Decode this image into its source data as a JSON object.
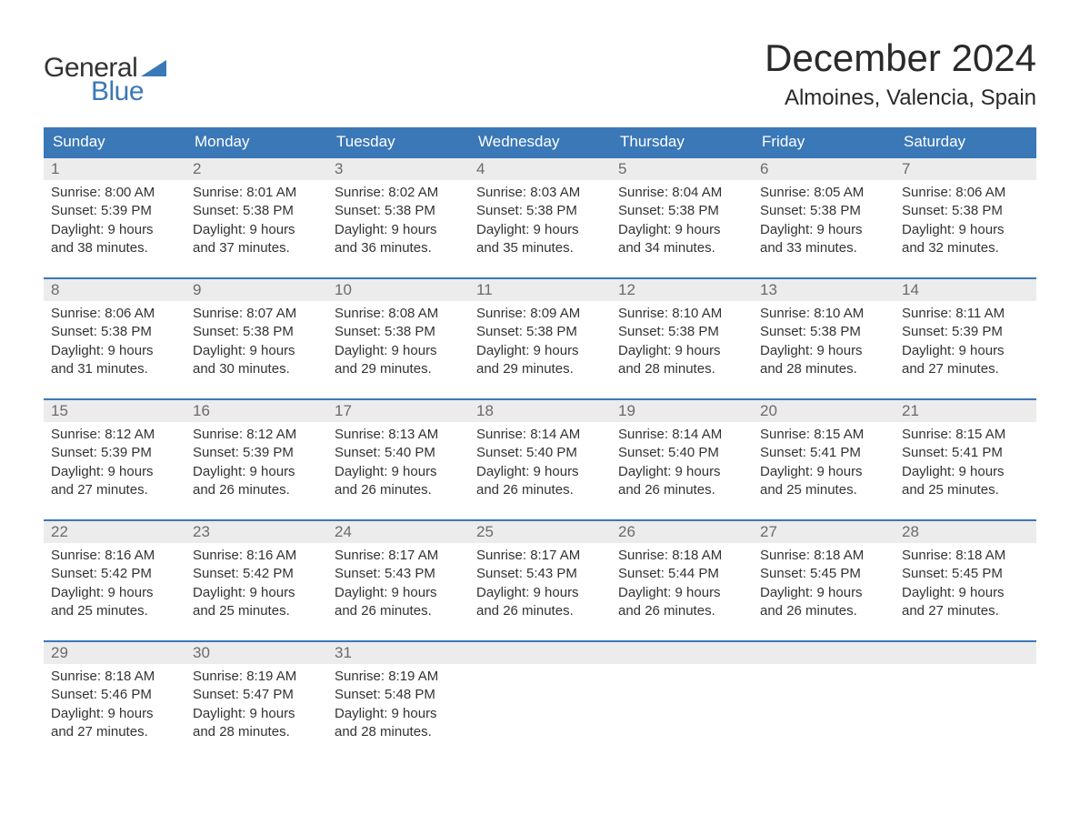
{
  "logo": {
    "text_general": "General",
    "text_blue": "Blue",
    "triangle_color": "#3a78b8"
  },
  "title": "December 2024",
  "location": "Almoines, Valencia, Spain",
  "colors": {
    "header_bg": "#3a78b8",
    "header_text": "#ffffff",
    "daynum_bg": "#ececec",
    "daynum_border": "#3a78b8",
    "daynum_text": "#6b6b6b",
    "body_text": "#333333",
    "page_bg": "#ffffff"
  },
  "day_headers": [
    "Sunday",
    "Monday",
    "Tuesday",
    "Wednesday",
    "Thursday",
    "Friday",
    "Saturday"
  ],
  "weeks": [
    [
      {
        "n": "1",
        "sunrise": "Sunrise: 8:00 AM",
        "sunset": "Sunset: 5:39 PM",
        "dl1": "Daylight: 9 hours",
        "dl2": "and 38 minutes."
      },
      {
        "n": "2",
        "sunrise": "Sunrise: 8:01 AM",
        "sunset": "Sunset: 5:38 PM",
        "dl1": "Daylight: 9 hours",
        "dl2": "and 37 minutes."
      },
      {
        "n": "3",
        "sunrise": "Sunrise: 8:02 AM",
        "sunset": "Sunset: 5:38 PM",
        "dl1": "Daylight: 9 hours",
        "dl2": "and 36 minutes."
      },
      {
        "n": "4",
        "sunrise": "Sunrise: 8:03 AM",
        "sunset": "Sunset: 5:38 PM",
        "dl1": "Daylight: 9 hours",
        "dl2": "and 35 minutes."
      },
      {
        "n": "5",
        "sunrise": "Sunrise: 8:04 AM",
        "sunset": "Sunset: 5:38 PM",
        "dl1": "Daylight: 9 hours",
        "dl2": "and 34 minutes."
      },
      {
        "n": "6",
        "sunrise": "Sunrise: 8:05 AM",
        "sunset": "Sunset: 5:38 PM",
        "dl1": "Daylight: 9 hours",
        "dl2": "and 33 minutes."
      },
      {
        "n": "7",
        "sunrise": "Sunrise: 8:06 AM",
        "sunset": "Sunset: 5:38 PM",
        "dl1": "Daylight: 9 hours",
        "dl2": "and 32 minutes."
      }
    ],
    [
      {
        "n": "8",
        "sunrise": "Sunrise: 8:06 AM",
        "sunset": "Sunset: 5:38 PM",
        "dl1": "Daylight: 9 hours",
        "dl2": "and 31 minutes."
      },
      {
        "n": "9",
        "sunrise": "Sunrise: 8:07 AM",
        "sunset": "Sunset: 5:38 PM",
        "dl1": "Daylight: 9 hours",
        "dl2": "and 30 minutes."
      },
      {
        "n": "10",
        "sunrise": "Sunrise: 8:08 AM",
        "sunset": "Sunset: 5:38 PM",
        "dl1": "Daylight: 9 hours",
        "dl2": "and 29 minutes."
      },
      {
        "n": "11",
        "sunrise": "Sunrise: 8:09 AM",
        "sunset": "Sunset: 5:38 PM",
        "dl1": "Daylight: 9 hours",
        "dl2": "and 29 minutes."
      },
      {
        "n": "12",
        "sunrise": "Sunrise: 8:10 AM",
        "sunset": "Sunset: 5:38 PM",
        "dl1": "Daylight: 9 hours",
        "dl2": "and 28 minutes."
      },
      {
        "n": "13",
        "sunrise": "Sunrise: 8:10 AM",
        "sunset": "Sunset: 5:38 PM",
        "dl1": "Daylight: 9 hours",
        "dl2": "and 28 minutes."
      },
      {
        "n": "14",
        "sunrise": "Sunrise: 8:11 AM",
        "sunset": "Sunset: 5:39 PM",
        "dl1": "Daylight: 9 hours",
        "dl2": "and 27 minutes."
      }
    ],
    [
      {
        "n": "15",
        "sunrise": "Sunrise: 8:12 AM",
        "sunset": "Sunset: 5:39 PM",
        "dl1": "Daylight: 9 hours",
        "dl2": "and 27 minutes."
      },
      {
        "n": "16",
        "sunrise": "Sunrise: 8:12 AM",
        "sunset": "Sunset: 5:39 PM",
        "dl1": "Daylight: 9 hours",
        "dl2": "and 26 minutes."
      },
      {
        "n": "17",
        "sunrise": "Sunrise: 8:13 AM",
        "sunset": "Sunset: 5:40 PM",
        "dl1": "Daylight: 9 hours",
        "dl2": "and 26 minutes."
      },
      {
        "n": "18",
        "sunrise": "Sunrise: 8:14 AM",
        "sunset": "Sunset: 5:40 PM",
        "dl1": "Daylight: 9 hours",
        "dl2": "and 26 minutes."
      },
      {
        "n": "19",
        "sunrise": "Sunrise: 8:14 AM",
        "sunset": "Sunset: 5:40 PM",
        "dl1": "Daylight: 9 hours",
        "dl2": "and 26 minutes."
      },
      {
        "n": "20",
        "sunrise": "Sunrise: 8:15 AM",
        "sunset": "Sunset: 5:41 PM",
        "dl1": "Daylight: 9 hours",
        "dl2": "and 25 minutes."
      },
      {
        "n": "21",
        "sunrise": "Sunrise: 8:15 AM",
        "sunset": "Sunset: 5:41 PM",
        "dl1": "Daylight: 9 hours",
        "dl2": "and 25 minutes."
      }
    ],
    [
      {
        "n": "22",
        "sunrise": "Sunrise: 8:16 AM",
        "sunset": "Sunset: 5:42 PM",
        "dl1": "Daylight: 9 hours",
        "dl2": "and 25 minutes."
      },
      {
        "n": "23",
        "sunrise": "Sunrise: 8:16 AM",
        "sunset": "Sunset: 5:42 PM",
        "dl1": "Daylight: 9 hours",
        "dl2": "and 25 minutes."
      },
      {
        "n": "24",
        "sunrise": "Sunrise: 8:17 AM",
        "sunset": "Sunset: 5:43 PM",
        "dl1": "Daylight: 9 hours",
        "dl2": "and 26 minutes."
      },
      {
        "n": "25",
        "sunrise": "Sunrise: 8:17 AM",
        "sunset": "Sunset: 5:43 PM",
        "dl1": "Daylight: 9 hours",
        "dl2": "and 26 minutes."
      },
      {
        "n": "26",
        "sunrise": "Sunrise: 8:18 AM",
        "sunset": "Sunset: 5:44 PM",
        "dl1": "Daylight: 9 hours",
        "dl2": "and 26 minutes."
      },
      {
        "n": "27",
        "sunrise": "Sunrise: 8:18 AM",
        "sunset": "Sunset: 5:45 PM",
        "dl1": "Daylight: 9 hours",
        "dl2": "and 26 minutes."
      },
      {
        "n": "28",
        "sunrise": "Sunrise: 8:18 AM",
        "sunset": "Sunset: 5:45 PM",
        "dl1": "Daylight: 9 hours",
        "dl2": "and 27 minutes."
      }
    ],
    [
      {
        "n": "29",
        "sunrise": "Sunrise: 8:18 AM",
        "sunset": "Sunset: 5:46 PM",
        "dl1": "Daylight: 9 hours",
        "dl2": "and 27 minutes."
      },
      {
        "n": "30",
        "sunrise": "Sunrise: 8:19 AM",
        "sunset": "Sunset: 5:47 PM",
        "dl1": "Daylight: 9 hours",
        "dl2": "and 28 minutes."
      },
      {
        "n": "31",
        "sunrise": "Sunrise: 8:19 AM",
        "sunset": "Sunset: 5:48 PM",
        "dl1": "Daylight: 9 hours",
        "dl2": "and 28 minutes."
      },
      null,
      null,
      null,
      null
    ]
  ]
}
